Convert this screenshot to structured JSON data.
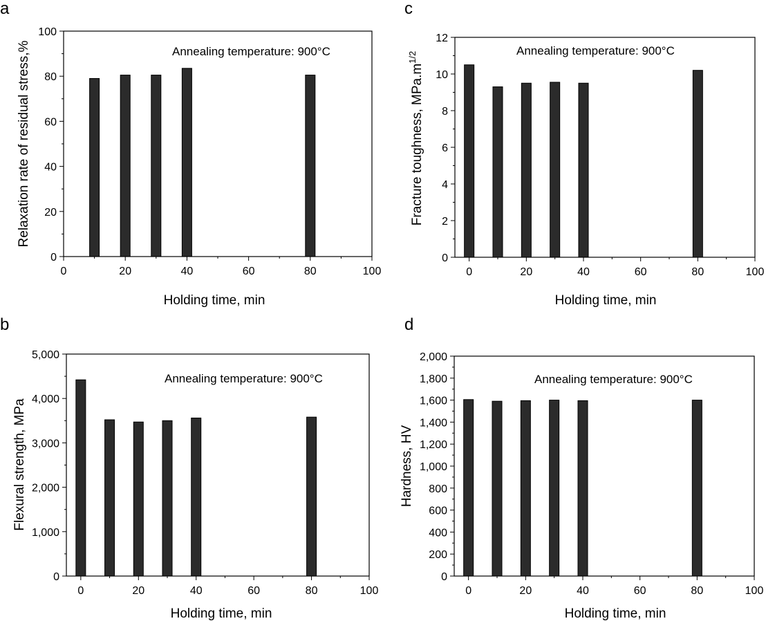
{
  "figure": {
    "panels": [
      {
        "letter": "a",
        "annotation": "Annealing temperature: 900°C"
      },
      {
        "letter": "b",
        "annotation": "Annealing temperature: 900°C"
      },
      {
        "letter": "c",
        "annotation": "Annealing temperature: 900°C"
      },
      {
        "letter": "d",
        "annotation": "Annealing temperature: 900°C"
      }
    ]
  },
  "chart_data": [
    {
      "panel": "a",
      "type": "bar",
      "xlabel": "Holding time, min",
      "ylabel": "Relaxation rate of residual stress,%",
      "xlim": [
        0,
        100
      ],
      "ylim": [
        0,
        100
      ],
      "xticks": [
        0,
        20,
        40,
        60,
        80,
        100
      ],
      "xtick_labels": [
        "0",
        "20",
        "40",
        "60",
        "80",
        "100"
      ],
      "yticks": [
        0,
        20,
        40,
        60,
        80,
        100
      ],
      "ytick_labels": [
        "0",
        "20",
        "40",
        "60",
        "80",
        "100"
      ],
      "x": [
        10,
        20,
        30,
        40,
        80
      ],
      "values": [
        79,
        80.5,
        80.5,
        83.5,
        80.5
      ],
      "grid": false,
      "bar_color": "#2b2b2b"
    },
    {
      "panel": "b",
      "type": "bar",
      "xlabel": "Holding time, min",
      "ylabel": "Flexural strength, MPa",
      "xlim": [
        -5,
        100
      ],
      "ylim": [
        0,
        5000
      ],
      "xticks": [
        0,
        20,
        40,
        60,
        80,
        100
      ],
      "xtick_labels": [
        "0",
        "20",
        "40",
        "60",
        "80",
        "100"
      ],
      "yticks": [
        0,
        1000,
        2000,
        3000,
        4000,
        5000
      ],
      "ytick_labels": [
        "0",
        "1,000",
        "2,000",
        "3,000",
        "4,000",
        "5,000"
      ],
      "x": [
        0,
        10,
        20,
        30,
        40,
        80
      ],
      "values": [
        4420,
        3520,
        3470,
        3500,
        3560,
        3580
      ],
      "grid": false,
      "bar_color": "#2b2b2b"
    },
    {
      "panel": "c",
      "type": "bar",
      "xlabel": "Holding time, min",
      "ylabel": "Fracture toughness, MPa.m",
      "ylabel_superscript": "1/2",
      "xlim": [
        -5,
        100
      ],
      "ylim": [
        0,
        12
      ],
      "xticks": [
        0,
        20,
        40,
        60,
        80,
        100
      ],
      "xtick_labels": [
        "0",
        "20",
        "40",
        "60",
        "80",
        "100"
      ],
      "yticks": [
        0,
        2,
        4,
        6,
        8,
        10,
        12
      ],
      "ytick_labels": [
        "0",
        "2",
        "4",
        "6",
        "8",
        "10",
        "12"
      ],
      "x": [
        0,
        10,
        20,
        30,
        40,
        80
      ],
      "values": [
        10.5,
        9.3,
        9.5,
        9.55,
        9.5,
        10.2
      ],
      "grid": false,
      "bar_color": "#2b2b2b"
    },
    {
      "panel": "d",
      "type": "bar",
      "xlabel": "Holding time, min",
      "ylabel": "Hardness, HV",
      "xlim": [
        -5,
        100
      ],
      "ylim": [
        0,
        2000
      ],
      "xticks": [
        0,
        20,
        40,
        60,
        80,
        100
      ],
      "xtick_labels": [
        "0",
        "20",
        "40",
        "60",
        "80",
        "100"
      ],
      "yticks": [
        0,
        200,
        400,
        600,
        800,
        1000,
        1200,
        1400,
        1600,
        1800,
        2000
      ],
      "ytick_labels": [
        "0",
        "200",
        "400",
        "600",
        "800",
        "1,000",
        "1,200",
        "1,400",
        "1,600",
        "1,800",
        "2,000"
      ],
      "x": [
        0,
        10,
        20,
        30,
        40,
        80
      ],
      "values": [
        1605,
        1590,
        1595,
        1600,
        1595,
        1600
      ],
      "grid": false,
      "bar_color": "#2b2b2b"
    }
  ]
}
